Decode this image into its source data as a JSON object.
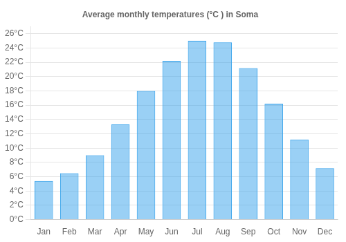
{
  "chart_data": {
    "type": "bar",
    "title": "Average monthly temperatures (°C ) in Soma",
    "categories": [
      "Jan",
      "Feb",
      "Mar",
      "Apr",
      "May",
      "Jun",
      "Jul",
      "Aug",
      "Sep",
      "Oct",
      "Nov",
      "Dec"
    ],
    "values": [
      5.4,
      6.5,
      9.0,
      13.3,
      18.0,
      22.2,
      25.0,
      24.8,
      21.2,
      16.2,
      11.2,
      7.2
    ],
    "ylim": [
      0,
      27
    ],
    "yticks": [
      {
        "value": 0,
        "label": "0°C"
      },
      {
        "value": 2,
        "label": "2°C"
      },
      {
        "value": 4,
        "label": "4°C"
      },
      {
        "value": 6,
        "label": "6°C"
      },
      {
        "value": 8,
        "label": "8°C"
      },
      {
        "value": 10,
        "label": "10°C"
      },
      {
        "value": 12,
        "label": "12°C"
      },
      {
        "value": 14,
        "label": "14°C"
      },
      {
        "value": 16,
        "label": "16°C"
      },
      {
        "value": 18,
        "label": "18°C"
      },
      {
        "value": 20,
        "label": "20°C"
      },
      {
        "value": 22,
        "label": "22°C"
      },
      {
        "value": 24,
        "label": "24°C"
      },
      {
        "value": 26,
        "label": "26°C"
      }
    ],
    "grid": true
  }
}
